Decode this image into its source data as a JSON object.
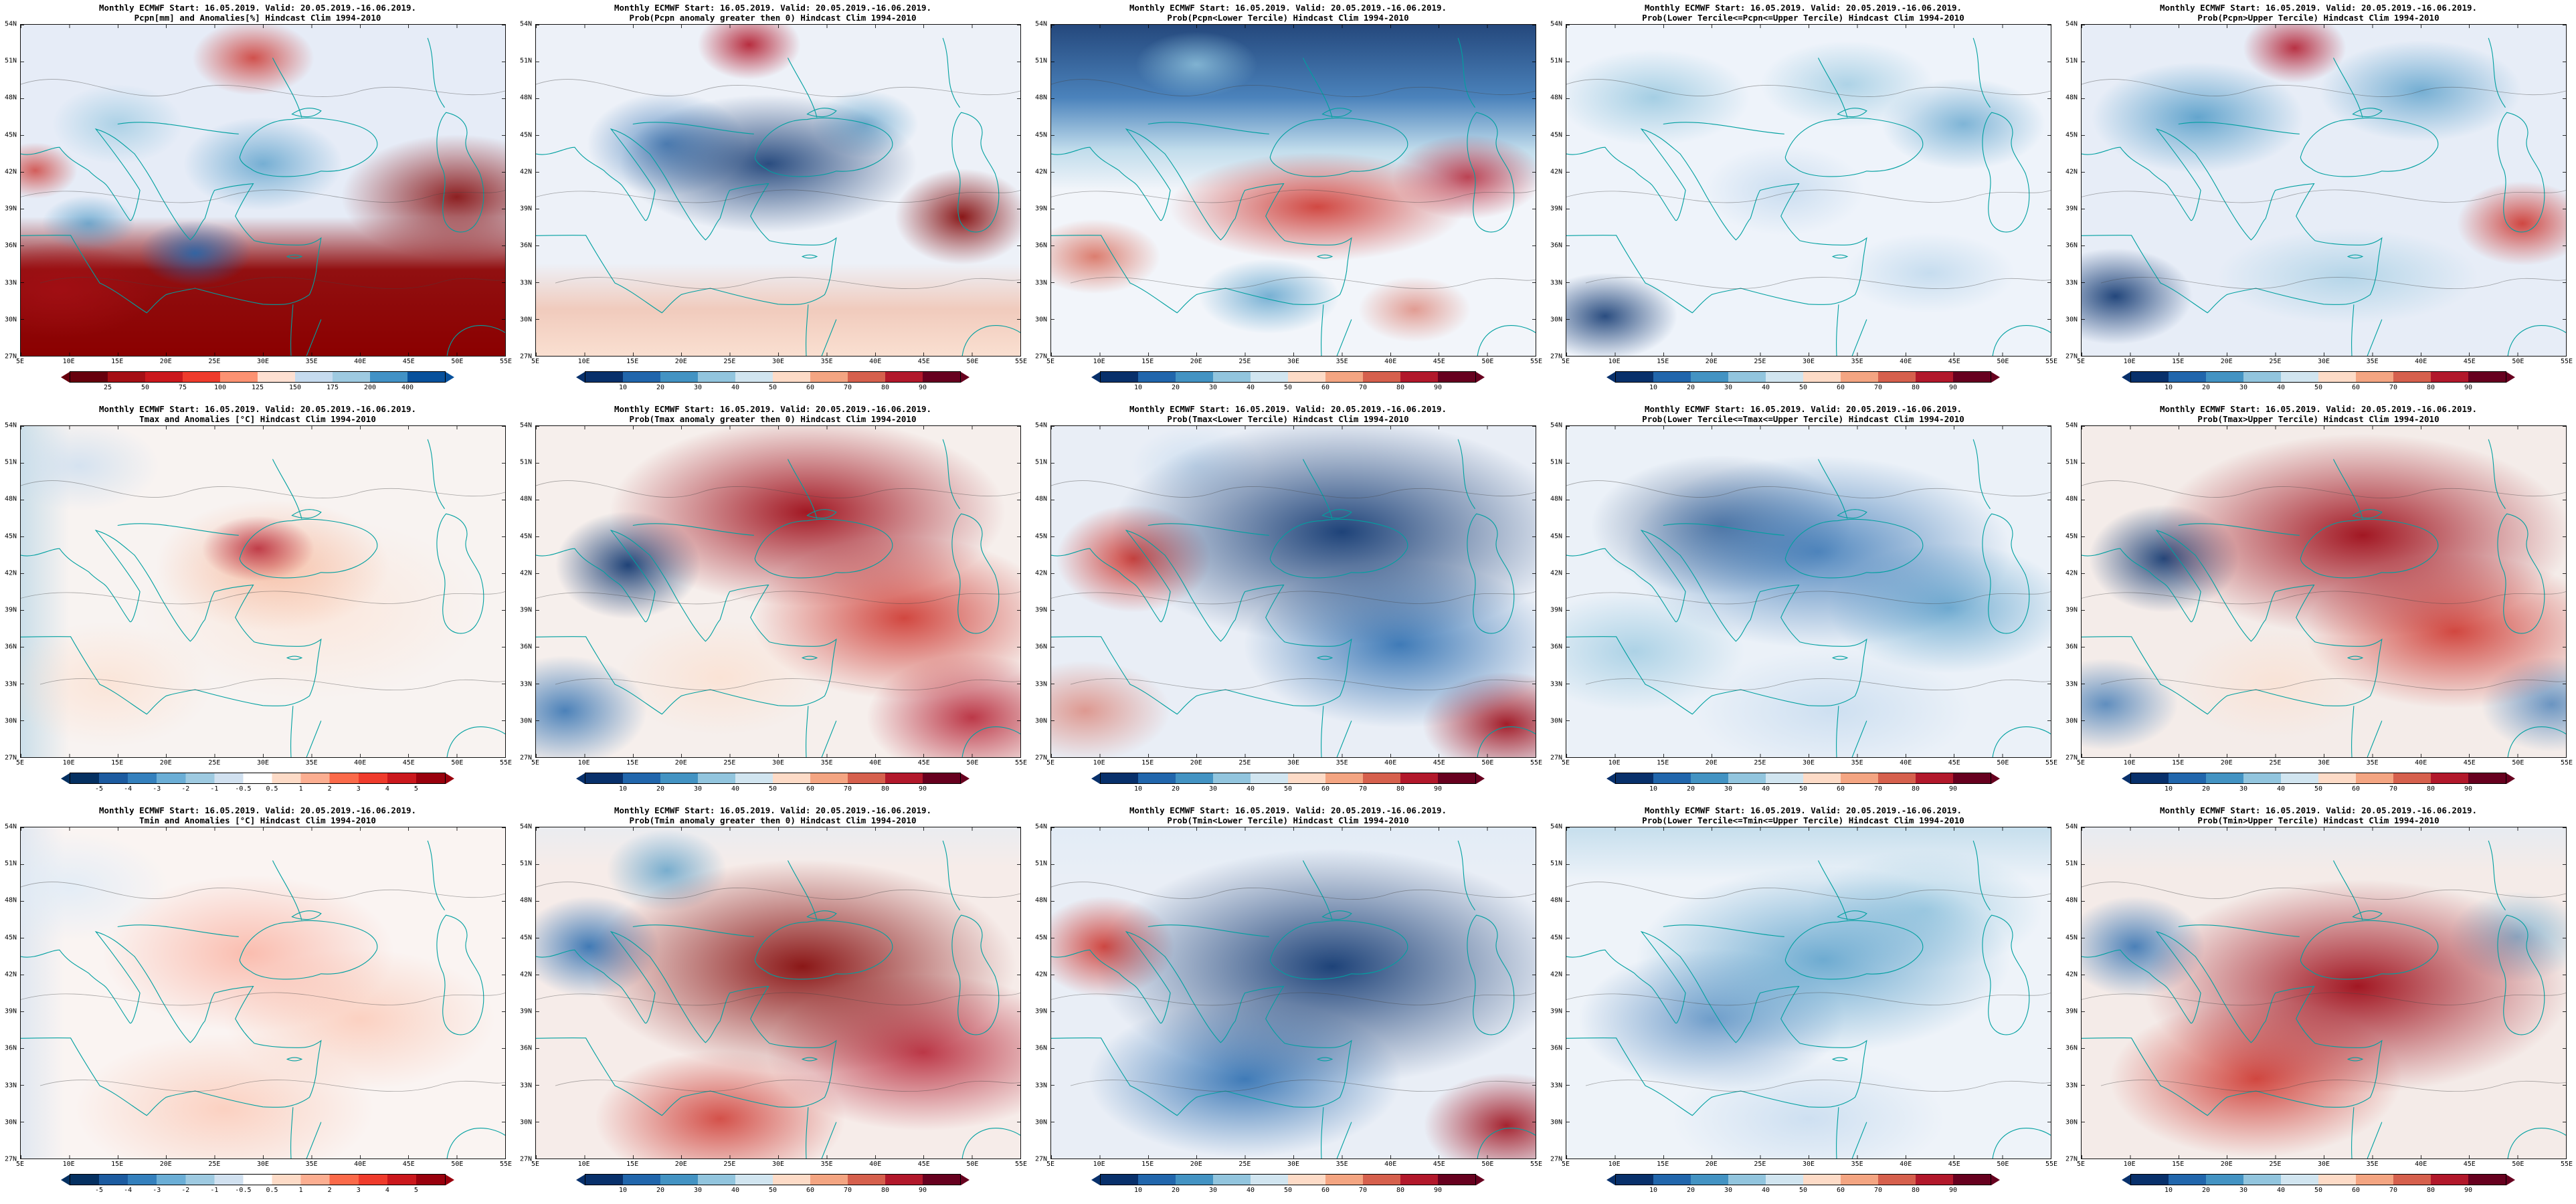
{
  "shared": {
    "title": "Monthly ECMWF Start: 16.05.2019. Valid: 20.05.2019.-16.06.2019."
  },
  "axes": {
    "lat_ticks": [
      "54N",
      "51N",
      "48N",
      "45N",
      "42N",
      "39N",
      "36N",
      "33N",
      "30N",
      "27N"
    ],
    "lon_ticks": [
      "5E",
      "10E",
      "15E",
      "20E",
      "25E",
      "30E",
      "35E",
      "40E",
      "45E",
      "50E",
      "55E"
    ]
  },
  "colorbars": {
    "pct": {
      "labels": [
        "25",
        "50",
        "75",
        "100",
        "125",
        "150",
        "175",
        "200",
        "400"
      ],
      "colors": [
        "#67000d",
        "#a50f15",
        "#cb181d",
        "#ef3b2c",
        "#fc9272",
        "#fee0d2",
        "#c6dbef",
        "#9ecae1",
        "#4292c6",
        "#08519c"
      ]
    },
    "prob": {
      "labels": [
        "10",
        "20",
        "30",
        "40",
        "50",
        "60",
        "70",
        "80",
        "90"
      ],
      "colors": [
        "#08306b",
        "#2166ac",
        "#4393c3",
        "#92c5de",
        "#d1e5f0",
        "#fddbc7",
        "#f4a582",
        "#d6604d",
        "#b2182b",
        "#67001f"
      ]
    },
    "temp": {
      "labels": [
        "-5",
        "-4",
        "-3",
        "-2",
        "-1",
        "-0.5",
        "0.5",
        "1",
        "2",
        "3",
        "4",
        "5"
      ],
      "colors": [
        "#053061",
        "#1c5ba0",
        "#3480bd",
        "#6baed6",
        "#9ecae1",
        "#d1e1f0",
        "#ffffff",
        "#fddbc7",
        "#fcae91",
        "#fb6a4a",
        "#ef3b2c",
        "#cb181d",
        "#99000d"
      ]
    }
  },
  "colors": {
    "coastline": "#00a0a0",
    "contour": "#444444",
    "map_border": "#000000",
    "background": "#ffffff"
  },
  "panels": [
    {
      "id": "pcpn-anom",
      "subtitle": "Pcpn[mm] and Anomalies[%] Hindcast Clim 1994-2010",
      "cbar": "pct"
    },
    {
      "id": "pcpn-prob-pos",
      "subtitle": "Prob(Pcpn anomaly greater then 0) Hindcast Clim 1994-2010",
      "cbar": "prob"
    },
    {
      "id": "pcpn-below",
      "subtitle": "Prob(Pcpn<Lower Tercile) Hindcast Clim 1994-2010",
      "cbar": "prob"
    },
    {
      "id": "pcpn-middle",
      "subtitle": "Prob(Lower Tercile<=Pcpn<=Upper Tercile) Hindcast Clim 1994-2010",
      "cbar": "prob"
    },
    {
      "id": "pcpn-above",
      "subtitle": "Prob(Pcpn>Upper Tercile) Hindcast Clim 1994-2010",
      "cbar": "prob"
    },
    {
      "id": "tmax-anom",
      "subtitle": "Tmax and Anomalies [°C] Hindcast Clim 1994-2010",
      "cbar": "temp"
    },
    {
      "id": "tmax-prob-pos",
      "subtitle": "Prob(Tmax anomaly greater then 0) Hindcast Clim 1994-2010",
      "cbar": "prob"
    },
    {
      "id": "tmax-below",
      "subtitle": "Prob(Tmax<Lower Tercile) Hindcast Clim 1994-2010",
      "cbar": "prob"
    },
    {
      "id": "tmax-middle",
      "subtitle": "Prob(Lower Tercile<=Tmax<=Upper Tercile) Hindcast Clim 1994-2010",
      "cbar": "prob"
    },
    {
      "id": "tmax-above",
      "subtitle": "Prob(Tmax>Upper Tercile) Hindcast Clim 1994-2010",
      "cbar": "prob"
    },
    {
      "id": "tmin-anom",
      "subtitle": "Tmin and Anomalies [°C] Hindcast Clim 1994-2010",
      "cbar": "temp"
    },
    {
      "id": "tmin-prob-pos",
      "subtitle": "Prob(Tmin anomaly greater then 0) Hindcast Clim 1994-2010",
      "cbar": "prob"
    },
    {
      "id": "tmin-below",
      "subtitle": "Prob(Tmin<Lower Tercile) Hindcast Clim 1994-2010",
      "cbar": "prob"
    },
    {
      "id": "tmin-middle",
      "subtitle": "Prob(Lower Tercile<=Tmin<=Upper Tercile) Hindcast Clim 1994-2010",
      "cbar": "prob"
    },
    {
      "id": "tmin-above",
      "subtitle": "Prob(Tmin>Upper Tercile) Hindcast Clim 1994-2010",
      "cbar": "prob"
    }
  ]
}
